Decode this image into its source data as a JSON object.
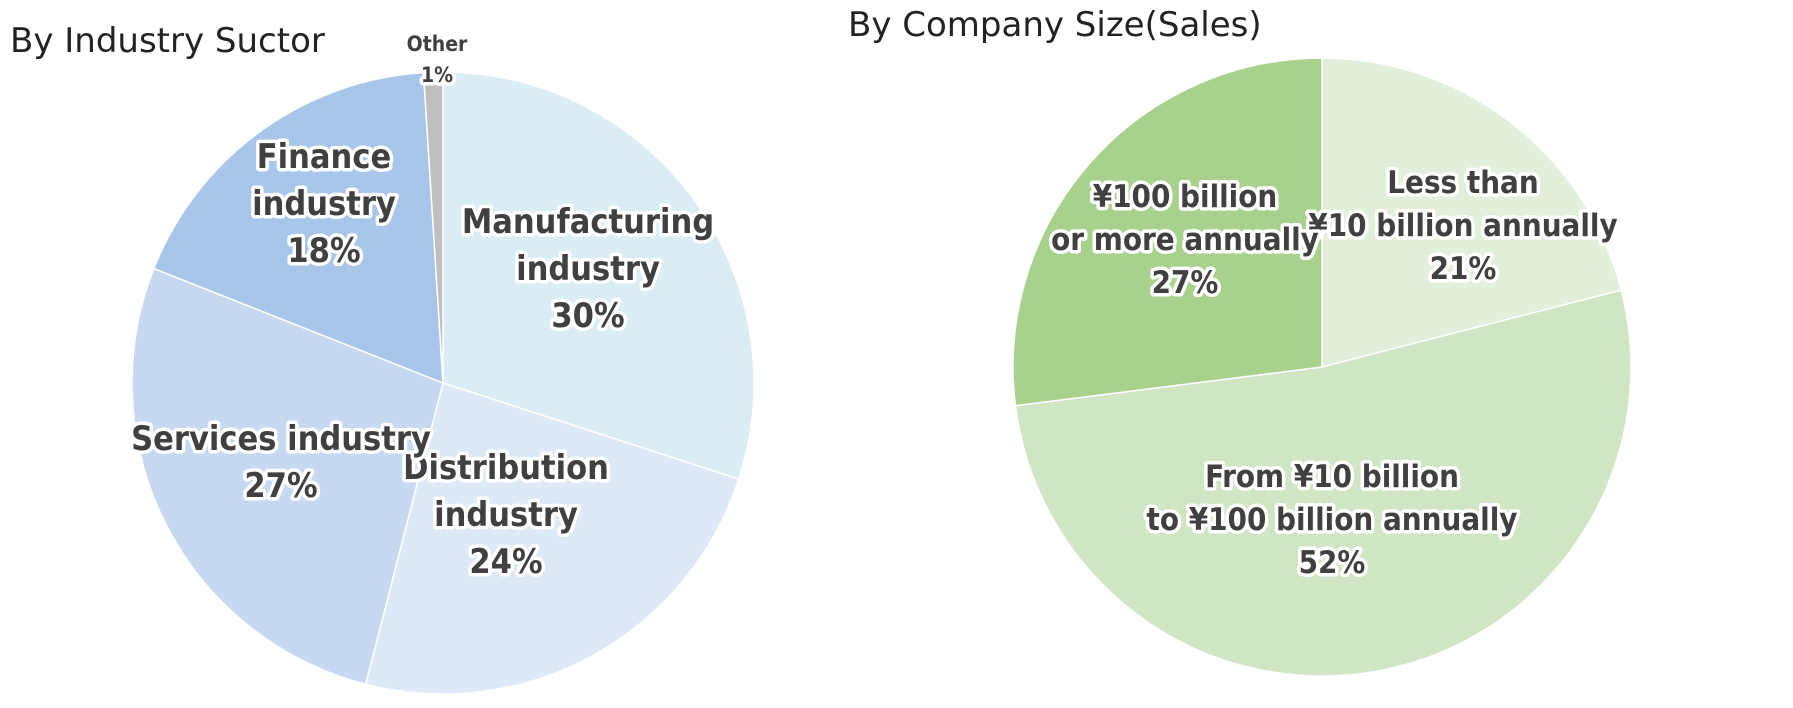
{
  "chart_data": [
    {
      "type": "pie",
      "title": "By Industry Suctor",
      "slices": [
        {
          "label": "Manufacturing industry",
          "label_lines": [
            "Manufacturing",
            "industry"
          ],
          "value": 30,
          "value_text": "30%",
          "color": "#daedf4"
        },
        {
          "label": "Distribution industry",
          "label_lines": [
            "Distribution",
            "industry"
          ],
          "value": 24,
          "value_text": "24%",
          "color": "#dde9f6"
        },
        {
          "label": "Services industry",
          "label_lines": [
            "Services industry"
          ],
          "value": 27,
          "value_text": "27%",
          "color": "#c6d9f0"
        },
        {
          "label": "Finance industry",
          "label_lines": [
            "Finance",
            "industry"
          ],
          "value": 18,
          "value_text": "18%",
          "color": "#a8c6ea"
        },
        {
          "label": "Other",
          "label_lines": [
            "Other"
          ],
          "value": 1,
          "value_text": "1%",
          "color": "#c0c0c0"
        }
      ]
    },
    {
      "type": "pie",
      "title": "By Company Size(Sales)",
      "slices": [
        {
          "label": "Less than ¥10 billion annually",
          "label_lines": [
            "Less than",
            "¥10 billion annually"
          ],
          "value": 21,
          "value_text": "21%",
          "color": "#e2efda"
        },
        {
          "label": "From ¥10 billion to ¥100 billion annually",
          "label_lines": [
            "From ¥10 billion",
            "to ¥100 billion annually"
          ],
          "value": 52,
          "value_text": "52%",
          "color": "#d0e5c4"
        },
        {
          "label": "¥100 billion or more annually",
          "label_lines": [
            "¥100 billion",
            "or more annually"
          ],
          "value": 27,
          "value_text": "27%",
          "color": "#a9d18e"
        }
      ]
    }
  ]
}
